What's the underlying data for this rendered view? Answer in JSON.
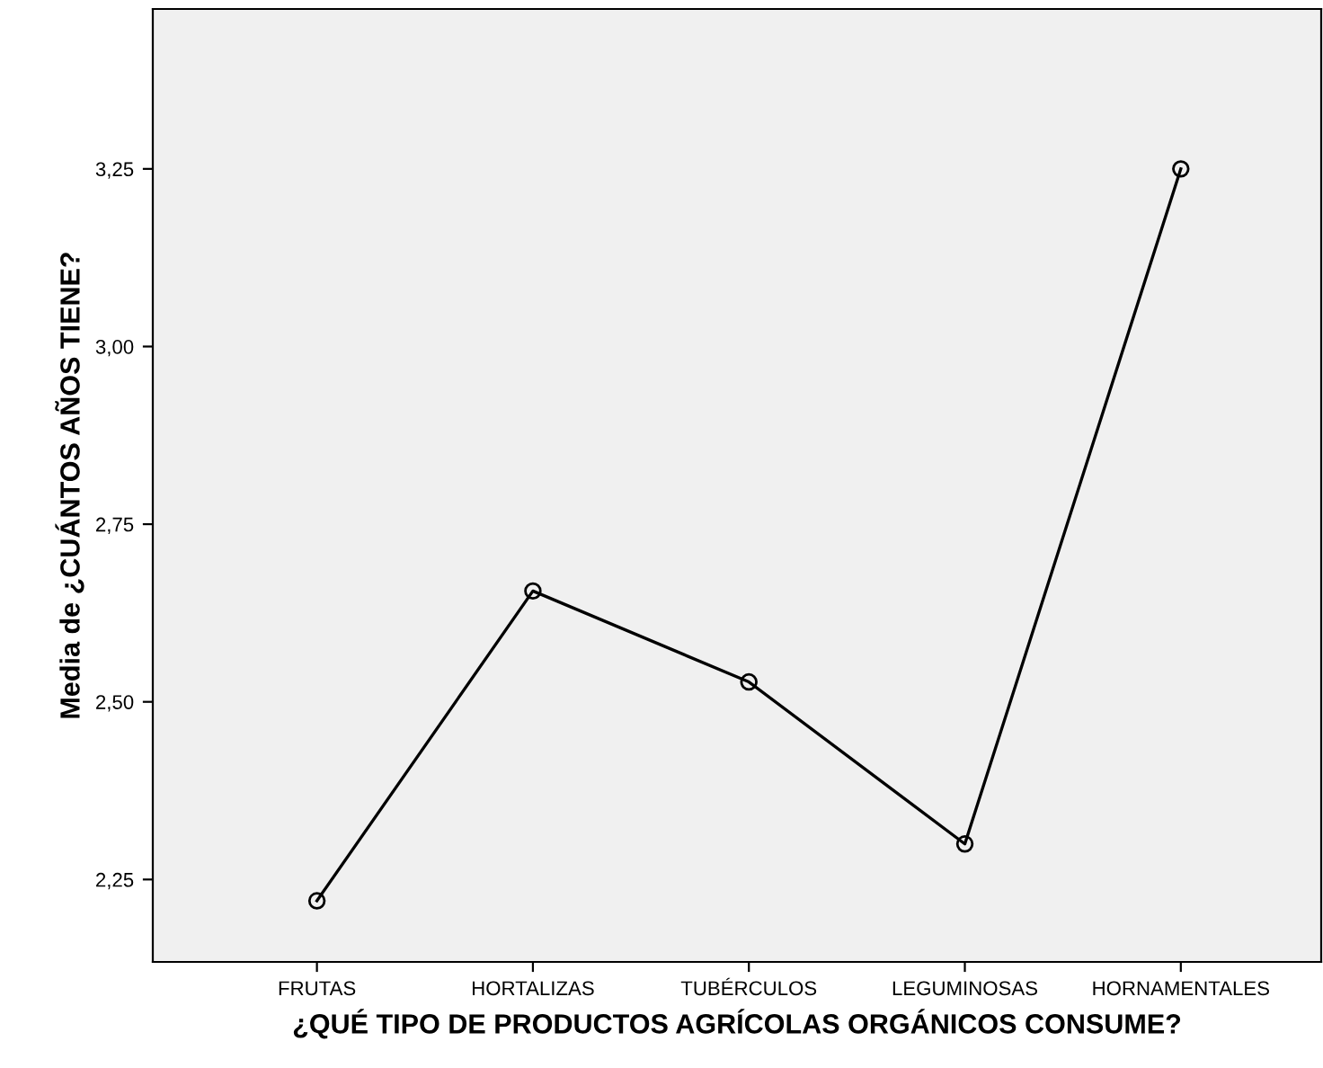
{
  "chart_data": {
    "type": "line",
    "xlabel": "¿QUÉ TIPO DE PRODUCTOS AGRÍCOLAS ORGÁNICOS CONSUME?",
    "ylabel": "Media de ¿CUÁNTOS AÑOS TIENE?",
    "categories": [
      "FRUTAS",
      "HORTALIZAS",
      "TUBÉRCULOS",
      "LEGUMINOSAS",
      "HORNAMENTALES"
    ],
    "series": [
      {
        "color": "#000000",
        "values": [
          2.22,
          2.656,
          2.528,
          2.3,
          3.25
        ]
      }
    ],
    "ylim": [
      2.134,
      3.475
    ],
    "yticks": [
      {
        "value": 2.25,
        "label": "2,25"
      },
      {
        "value": 2.5,
        "label": "2,50"
      },
      {
        "value": 2.75,
        "label": "2,75"
      },
      {
        "value": 3.0,
        "label": "3,00"
      },
      {
        "value": 3.25,
        "label": "3,25"
      }
    ],
    "marker": "circle",
    "line_style": "solid",
    "grid": false
  }
}
